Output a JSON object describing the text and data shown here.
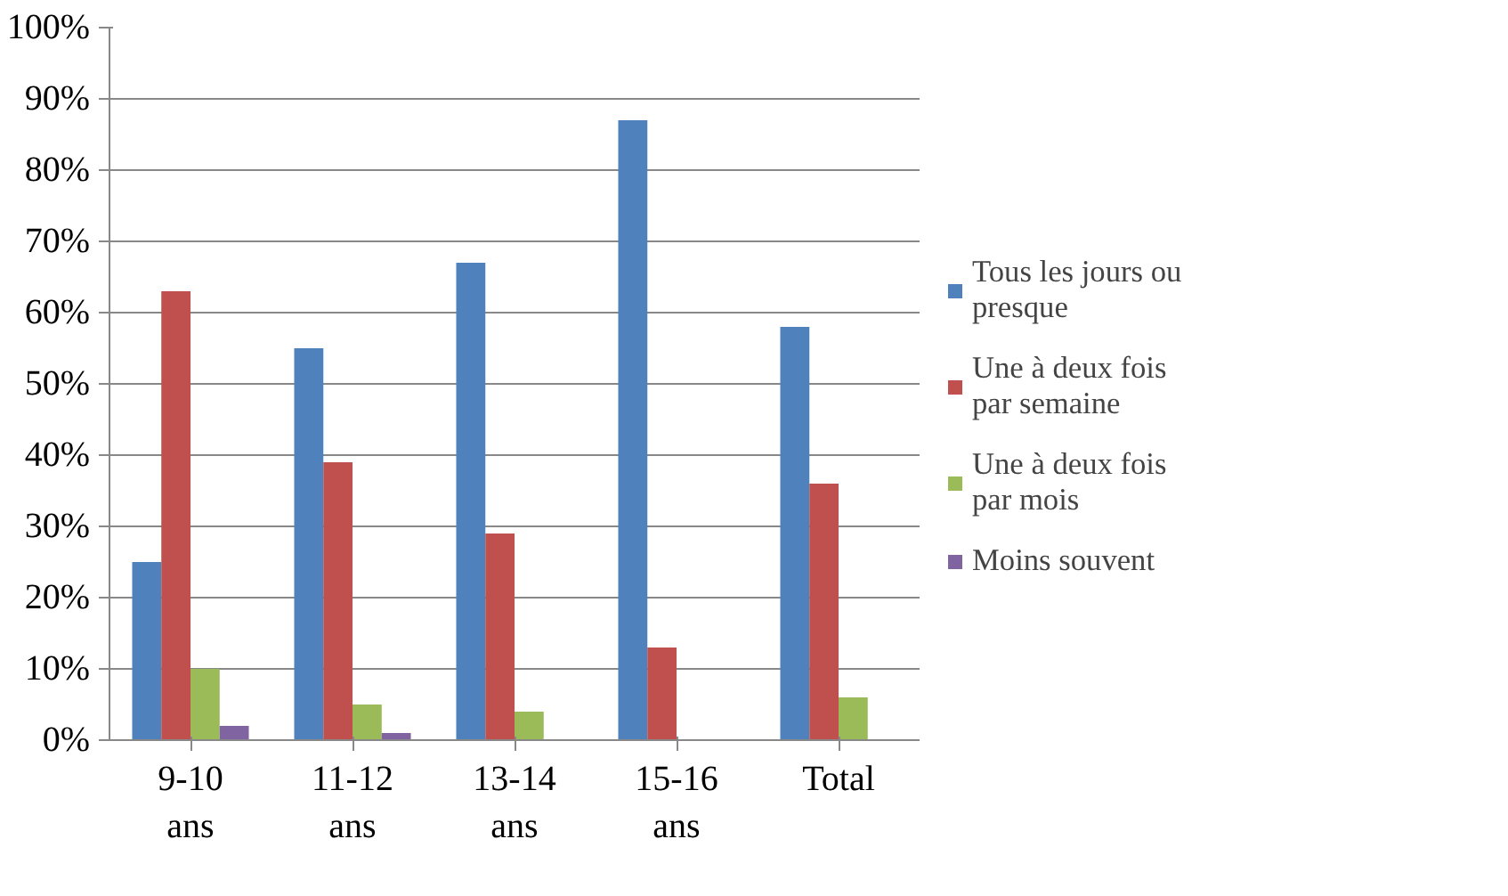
{
  "chart_data": {
    "type": "bar",
    "categories": [
      "9-10 ans",
      "11-12 ans",
      "13-14 ans",
      "15-16 ans",
      "Total"
    ],
    "series": [
      {
        "name": "Tous les jours ou presque",
        "color": "#4f81bd",
        "values": [
          25,
          55,
          67,
          87,
          58
        ]
      },
      {
        "name": "Une à deux fois par semaine",
        "color": "#c0504d",
        "values": [
          63,
          39,
          29,
          13,
          36
        ]
      },
      {
        "name": "Une à deux fois par mois",
        "color": "#9bbb59",
        "values": [
          10,
          5,
          4,
          0,
          6
        ]
      },
      {
        "name": "Moins souvent",
        "color": "#8064a2",
        "values": [
          2,
          1,
          0,
          0,
          0
        ]
      }
    ],
    "ylim": [
      0,
      100
    ],
    "yticks": [
      {
        "value": 0,
        "label": "0%"
      },
      {
        "value": 10,
        "label": "10%"
      },
      {
        "value": 20,
        "label": "20%"
      },
      {
        "value": 30,
        "label": "30%"
      },
      {
        "value": 40,
        "label": "40%"
      },
      {
        "value": 50,
        "label": "50%"
      },
      {
        "value": 60,
        "label": "60%"
      },
      {
        "value": 70,
        "label": "70%"
      },
      {
        "value": 80,
        "label": "80%"
      },
      {
        "value": 90,
        "label": "90%"
      },
      {
        "value": 100,
        "label": "100%"
      }
    ],
    "grid": "y",
    "legend": "right"
  }
}
